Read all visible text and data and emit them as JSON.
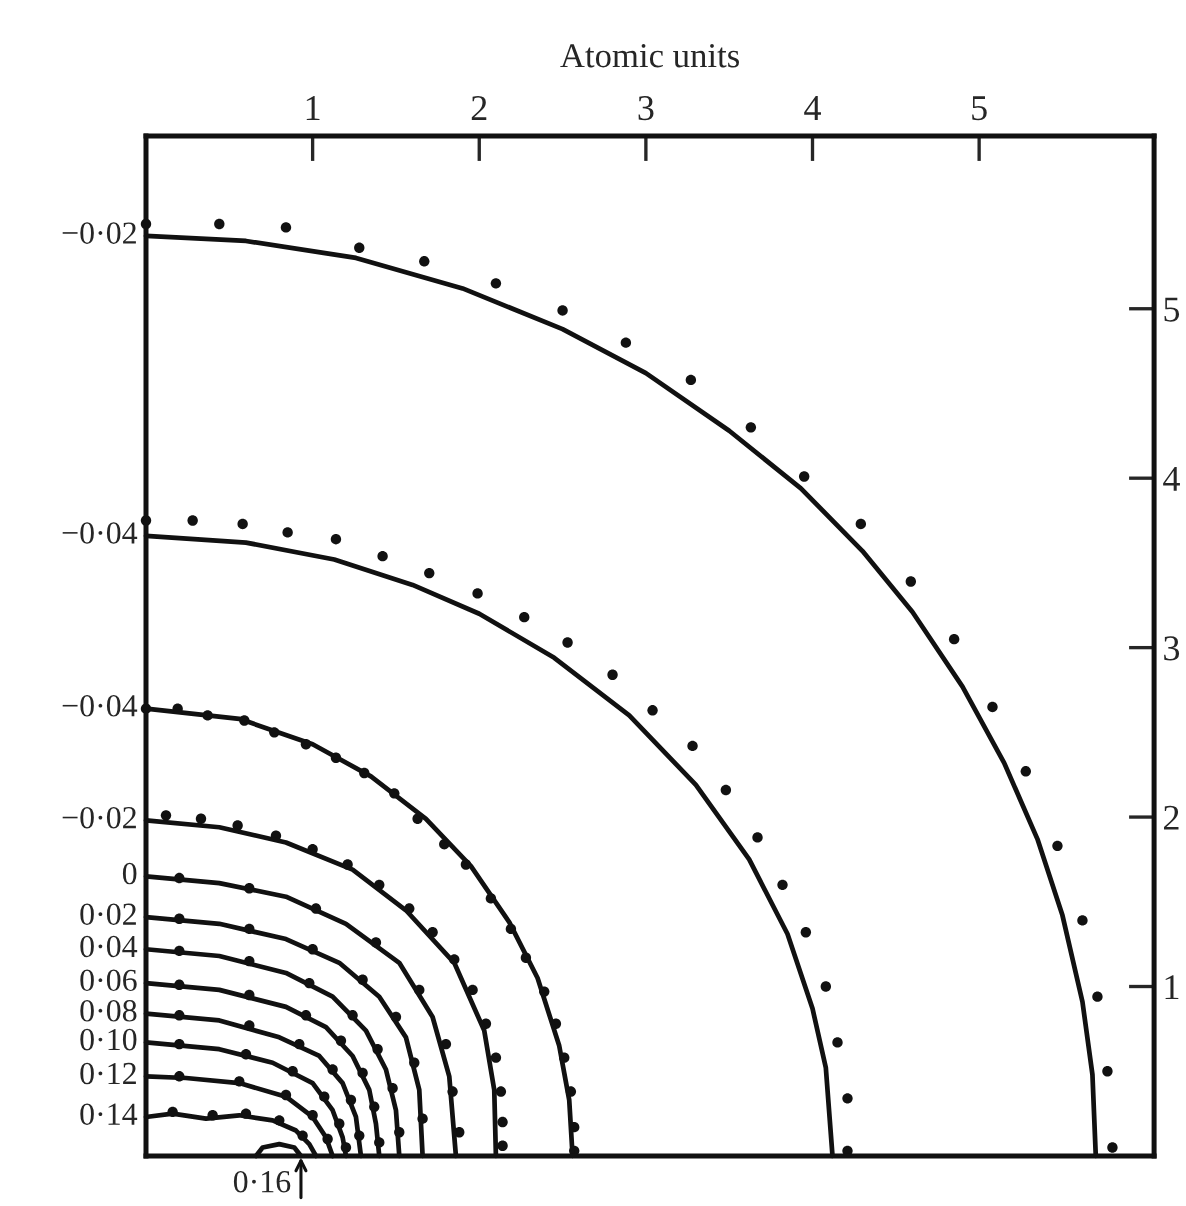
{
  "chart_data": {
    "type": "line",
    "xlabel": "Atomic units",
    "xlim": [
      0,
      6.05
    ],
    "xticks": [
      1,
      2,
      3,
      4,
      5
    ],
    "ylim": [
      0,
      6.02
    ],
    "yticks": [
      1,
      2,
      3,
      4,
      5
    ],
    "series": [
      {
        "name": "−0·02",
        "color": "#111111",
        "x": [
          0,
          0.6,
          1.26,
          1.9,
          2.5,
          3.0,
          3.5,
          3.93,
          4.3,
          4.6,
          4.9,
          5.15,
          5.35,
          5.5,
          5.62,
          5.68,
          5.7
        ],
        "values": [
          5.43,
          5.4,
          5.3,
          5.12,
          4.88,
          4.62,
          4.28,
          3.94,
          3.57,
          3.21,
          2.77,
          2.32,
          1.87,
          1.42,
          0.91,
          0.48,
          0
        ]
      },
      {
        "name": "−0·04",
        "color": "#111111",
        "x": [
          0,
          0.6,
          1.13,
          1.6,
          2.0,
          2.45,
          2.9,
          3.3,
          3.62,
          3.85,
          4.0,
          4.08,
          4.12
        ],
        "values": [
          3.66,
          3.62,
          3.52,
          3.37,
          3.2,
          2.94,
          2.6,
          2.19,
          1.75,
          1.31,
          0.87,
          0.52,
          0
        ]
      },
      {
        "name": "−0·04",
        "color": "#111111",
        "x": [
          0,
          0.56,
          1.0,
          1.35,
          1.68,
          1.95,
          2.18,
          2.35,
          2.48,
          2.54,
          2.56
        ],
        "values": [
          2.64,
          2.58,
          2.43,
          2.24,
          1.99,
          1.71,
          1.38,
          1.05,
          0.65,
          0.33,
          0
        ]
      },
      {
        "name": "−0·02",
        "color": "#111111",
        "x": [
          0,
          0.44,
          0.84,
          1.24,
          1.56,
          1.85,
          2.03,
          2.09,
          2.1
        ],
        "values": [
          1.98,
          1.94,
          1.85,
          1.69,
          1.45,
          1.14,
          0.74,
          0.39,
          0
        ]
      },
      {
        "name": "0",
        "color": "#111111",
        "x": [
          0,
          0.44,
          0.84,
          1.2,
          1.52,
          1.72,
          1.82,
          1.86
        ],
        "values": [
          1.65,
          1.61,
          1.53,
          1.37,
          1.14,
          0.82,
          0.47,
          0
        ]
      },
      {
        "name": "0·02",
        "color": "#111111",
        "x": [
          0,
          0.44,
          0.84,
          1.16,
          1.4,
          1.56,
          1.64,
          1.66
        ],
        "values": [
          1.41,
          1.37,
          1.28,
          1.14,
          0.94,
          0.7,
          0.39,
          0
        ]
      },
      {
        "name": "0·04",
        "color": "#111111",
        "x": [
          0,
          0.44,
          0.84,
          1.12,
          1.32,
          1.44,
          1.5,
          1.52
        ],
        "values": [
          1.22,
          1.18,
          1.08,
          0.94,
          0.74,
          0.51,
          0.27,
          0
        ]
      },
      {
        "name": "0·06",
        "color": "#111111",
        "x": [
          0,
          0.44,
          0.84,
          1.08,
          1.24,
          1.34,
          1.38,
          1.4
        ],
        "values": [
          1.02,
          0.98,
          0.88,
          0.76,
          0.59,
          0.39,
          0.19,
          0
        ]
      },
      {
        "name": "0·08",
        "color": "#111111",
        "x": [
          0,
          0.44,
          0.8,
          1.04,
          1.18,
          1.26,
          1.29
        ],
        "values": [
          0.84,
          0.8,
          0.7,
          0.59,
          0.43,
          0.23,
          0
        ]
      },
      {
        "name": "0·10",
        "color": "#111111",
        "x": [
          0,
          0.44,
          0.76,
          1.0,
          1.12,
          1.18,
          1.2
        ],
        "values": [
          0.67,
          0.63,
          0.55,
          0.43,
          0.27,
          0.11,
          0
        ]
      },
      {
        "name": "0·12",
        "color": "#111111",
        "x": [
          0,
          0.24,
          0.56,
          0.84,
          1.0,
          1.08,
          1.12
        ],
        "values": [
          0.47,
          0.46,
          0.43,
          0.35,
          0.23,
          0.11,
          0
        ]
      },
      {
        "name": "0·14",
        "color": "#111111",
        "x": [
          0,
          0.16,
          0.36,
          0.56,
          0.76,
          0.9,
          0.98,
          1.02
        ],
        "values": [
          0.23,
          0.25,
          0.22,
          0.24,
          0.21,
          0.15,
          0.07,
          0
        ]
      },
      {
        "name": "0·16",
        "color": "#111111",
        "x": [
          0.66,
          0.7,
          0.8,
          0.89,
          0.93
        ],
        "values": [
          0,
          0.05,
          0.07,
          0.05,
          0
        ]
      },
      {
        "type": "scatter",
        "marker": "circle",
        "color": "#111111",
        "x": [
          0,
          0.44,
          0.84,
          1.28,
          1.67,
          2.1,
          2.5,
          2.88,
          3.27,
          3.63,
          3.95,
          4.29,
          4.59,
          4.85,
          5.08,
          5.28,
          5.47,
          5.62,
          5.71,
          5.77,
          5.8,
          0,
          0.28,
          0.58,
          0.85,
          1.14,
          1.42,
          1.7,
          1.99,
          2.27,
          2.53,
          2.8,
          3.04,
          3.28,
          3.48,
          3.67,
          3.82,
          3.96,
          4.08,
          4.15,
          4.21,
          4.21,
          0,
          0.19,
          0.37,
          0.59,
          0.77,
          0.96,
          1.14,
          1.31,
          1.49,
          1.63,
          1.79,
          1.92,
          2.07,
          2.19,
          2.28,
          2.39,
          2.46,
          2.51,
          2.55,
          2.57,
          2.57,
          0.12,
          0.33,
          0.55,
          0.78,
          1.0,
          1.21,
          1.4,
          1.58,
          1.72,
          1.85,
          1.96,
          2.04,
          2.1,
          2.13,
          2.14,
          2.14,
          0.2,
          0.62,
          1.02,
          1.38,
          1.64,
          1.8,
          1.84,
          1.88,
          0.2,
          0.62,
          1.0,
          1.3,
          1.5,
          1.61,
          1.66,
          0.2,
          0.62,
          0.98,
          1.24,
          1.39,
          1.48,
          1.52,
          0.2,
          0.62,
          0.96,
          1.17,
          1.3,
          1.37,
          1.4,
          0.2,
          0.62,
          0.92,
          1.12,
          1.23,
          1.28,
          0.2,
          0.6,
          0.88,
          1.07,
          1.16,
          1.2,
          0.2,
          0.56,
          0.84,
          1.0,
          1.09,
          0.16,
          0.4,
          0.6,
          0.8,
          0.94
        ],
        "values": [
          5.5,
          5.5,
          5.48,
          5.36,
          5.28,
          5.15,
          4.99,
          4.8,
          4.58,
          4.3,
          4.01,
          3.73,
          3.39,
          3.05,
          2.65,
          2.27,
          1.83,
          1.39,
          0.94,
          0.5,
          0.05,
          3.75,
          3.75,
          3.73,
          3.68,
          3.64,
          3.54,
          3.44,
          3.32,
          3.18,
          3.03,
          2.84,
          2.63,
          2.42,
          2.16,
          1.88,
          1.6,
          1.32,
          1.0,
          0.67,
          0.34,
          0.03,
          2.64,
          2.64,
          2.6,
          2.57,
          2.5,
          2.43,
          2.35,
          2.26,
          2.14,
          1.99,
          1.84,
          1.72,
          1.52,
          1.34,
          1.17,
          0.97,
          0.78,
          0.58,
          0.38,
          0.17,
          0.03,
          2.01,
          1.99,
          1.95,
          1.89,
          1.81,
          1.72,
          1.6,
          1.46,
          1.32,
          1.16,
          0.98,
          0.78,
          0.58,
          0.38,
          0.2,
          0.06,
          1.64,
          1.58,
          1.46,
          1.26,
          0.98,
          0.66,
          0.38,
          0.14,
          1.4,
          1.34,
          1.22,
          1.04,
          0.82,
          0.55,
          0.22,
          1.21,
          1.15,
          1.02,
          0.83,
          0.63,
          0.4,
          0.14,
          1.01,
          0.95,
          0.83,
          0.68,
          0.49,
          0.29,
          0.08,
          0.83,
          0.77,
          0.66,
          0.51,
          0.33,
          0.12,
          0.66,
          0.6,
          0.5,
          0.35,
          0.19,
          0.05,
          0.47,
          0.44,
          0.36,
          0.24,
          0.1,
          0.26,
          0.24,
          0.25,
          0.21,
          0.12
        ]
      }
    ]
  }
}
